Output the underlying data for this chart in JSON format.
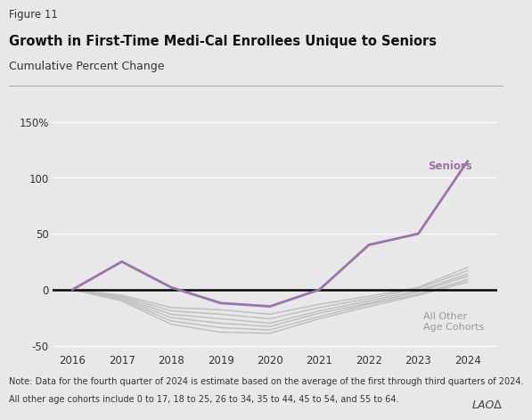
{
  "figure_label": "Figure 11",
  "title": "Growth in First-Time Medi-Cal Enrollees Unique to Seniors",
  "subtitle": "Cumulative Percent Change",
  "note_line1": "Note: Data for the fourth quarter of 2024 is estimate based on the average of the first through third quarters of 2024.",
  "note_line2": "All other age cohorts include 0 to 17, 18 to 25, 26 to 34, 35 to 44, 45 to 54, and 55 to 64.",
  "lao_label": "LAO∆",
  "years": [
    2016,
    2017,
    2018,
    2019,
    2020,
    2021,
    2022,
    2023,
    2024
  ],
  "seniors": [
    0,
    25,
    2,
    -12,
    -15,
    0,
    40,
    50,
    115
  ],
  "other_cohorts": [
    [
      0,
      -5,
      -16,
      -18,
      -22,
      -13,
      -6,
      2,
      20
    ],
    [
      0,
      -6,
      -19,
      -22,
      -26,
      -16,
      -8,
      1,
      17
    ],
    [
      0,
      -7,
      -22,
      -26,
      -30,
      -19,
      -10,
      -1,
      14
    ],
    [
      0,
      -8,
      -25,
      -30,
      -33,
      -21,
      -12,
      -2,
      12
    ],
    [
      0,
      -9,
      -28,
      -34,
      -36,
      -24,
      -13,
      -4,
      9
    ],
    [
      0,
      -10,
      -31,
      -38,
      -39,
      -26,
      -15,
      -5,
      7
    ]
  ],
  "seniors_color": "#9B72AA",
  "other_color": "#C0C0C0",
  "zero_line_color": "#000000",
  "plot_bg_color": "#E8E8E8",
  "fig_bg_color": "#E8E8E8",
  "ylim": [
    -55,
    165
  ],
  "yticks": [
    -50,
    0,
    50,
    100,
    150
  ],
  "ytick_labels": [
    "-50",
    "0",
    "50",
    "100",
    "150%"
  ],
  "xlim": [
    2015.6,
    2024.6
  ],
  "xticks": [
    2016,
    2017,
    2018,
    2019,
    2020,
    2021,
    2022,
    2023,
    2024
  ]
}
